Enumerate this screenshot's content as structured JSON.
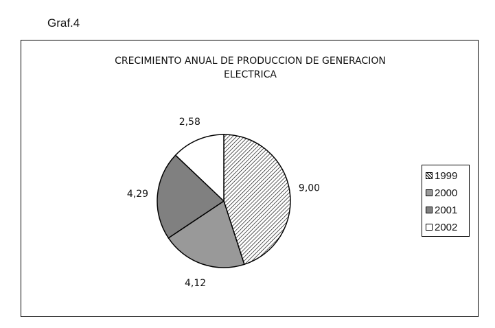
{
  "figure_label": "Graf.4",
  "chart_data": {
    "type": "pie",
    "title_lines": [
      "CRECIMIENTO ANUAL DE PRODUCCION DE GENERACION",
      "ELECTRICA"
    ],
    "categories": [
      "1999",
      "2000",
      "2001",
      "2002"
    ],
    "values": [
      9.0,
      4.12,
      4.29,
      2.58
    ],
    "value_labels": [
      "9,00",
      "4,12",
      "4,29",
      "2,58"
    ],
    "fills": [
      "hatch",
      "#999999",
      "#808080",
      "#ffffff"
    ],
    "legend_position": "right",
    "start_angle_deg": 0,
    "direction": "clockwise"
  }
}
